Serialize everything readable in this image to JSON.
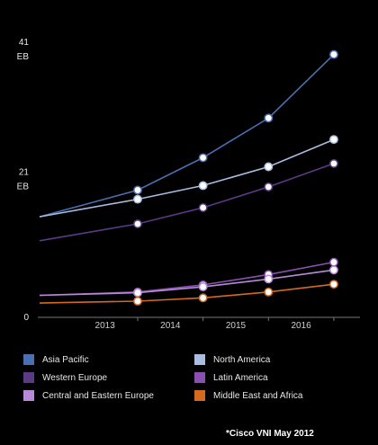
{
  "chart_data": {
    "type": "line",
    "x": [
      "2013",
      "2014",
      "2015",
      "2016"
    ],
    "y_ticks": [
      {
        "value": 0,
        "label": "0",
        "unit": ""
      },
      {
        "value": 21,
        "label": "21",
        "unit": "EB"
      },
      {
        "value": 41,
        "label": "41",
        "unit": "EB"
      }
    ],
    "ylim": [
      0,
      41
    ],
    "grid": false,
    "legend_position": "bottom",
    "series": [
      {
        "name": "Asia Pacific",
        "color": "#4a6fb3",
        "x": [
          2012,
          2013.5,
          2014.5,
          2015.5,
          2016.5
        ],
        "values": [
          15.5,
          19.6,
          24.6,
          30.7,
          40.5
        ]
      },
      {
        "name": "North America",
        "color": "#a8bde0",
        "x": [
          2012,
          2013.5,
          2014.5,
          2015.5,
          2016.5
        ],
        "values": [
          15.5,
          18.2,
          20.3,
          23.2,
          27.4
        ]
      },
      {
        "name": "Western Europe",
        "color": "#5b3a86",
        "x": [
          2012,
          2013.5,
          2014.5,
          2015.5,
          2016.5
        ],
        "values": [
          11.8,
          14.4,
          16.9,
          20.1,
          23.7
        ]
      },
      {
        "name": "Latin America",
        "color": "#8a4fb0",
        "x": [
          2012,
          2013.5,
          2014.5,
          2015.5,
          2016.5
        ],
        "values": [
          3.4,
          3.9,
          5.0,
          6.6,
          8.5
        ]
      },
      {
        "name": "Central and Eastern Europe",
        "color": "#b88ad6",
        "x": [
          2012,
          2013.5,
          2014.5,
          2015.5,
          2016.5
        ],
        "values": [
          3.4,
          3.8,
          4.7,
          5.9,
          7.3
        ]
      },
      {
        "name": "Middle East and Africa",
        "color": "#d46a1f",
        "x": [
          2012,
          2013.5,
          2014.5,
          2015.5,
          2016.5
        ],
        "values": [
          2.2,
          2.5,
          3.0,
          3.9,
          5.1
        ]
      }
    ]
  },
  "source": "*Cisco VNI May 2012"
}
